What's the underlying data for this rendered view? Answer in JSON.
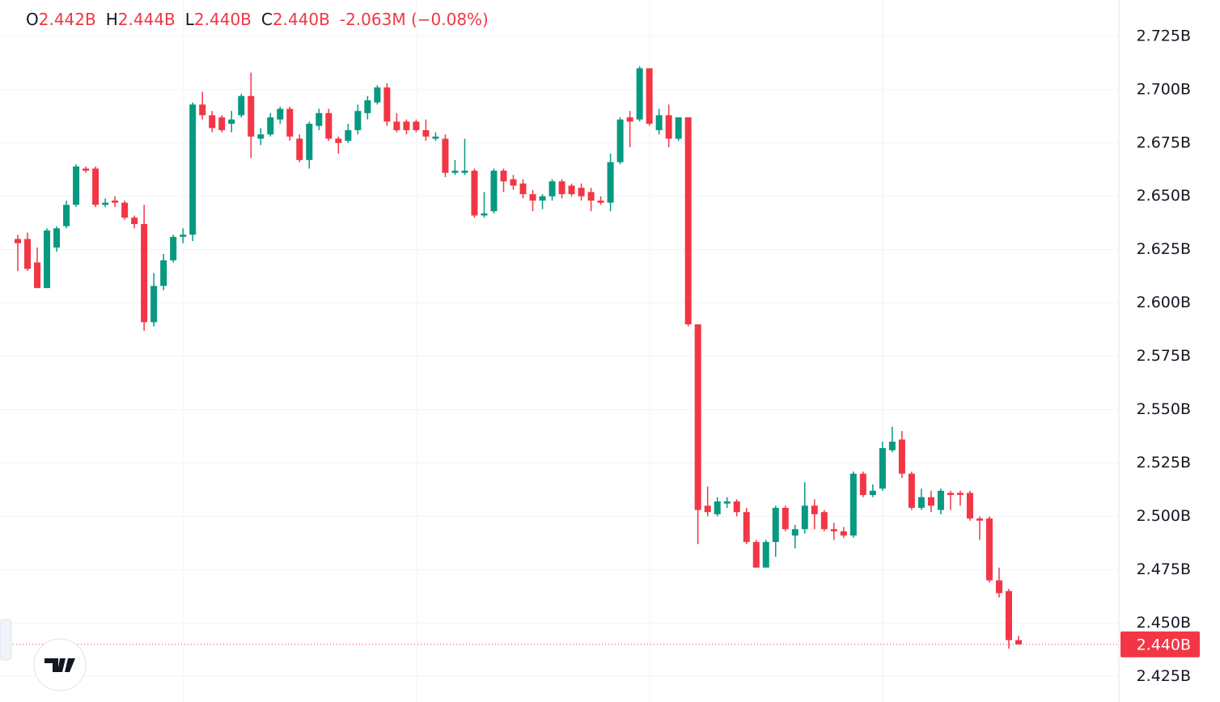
{
  "chart_data": {
    "type": "candlestick",
    "ohlc_legend": [
      {
        "label": "O",
        "value": "2.442B"
      },
      {
        "label": "H",
        "value": "2.444B"
      },
      {
        "label": "L",
        "value": "2.440B"
      },
      {
        "label": "C",
        "value": "2.440B"
      }
    ],
    "change": "-2.063M (−0.08%)",
    "up_color": "#089981",
    "down_color": "#f23645",
    "ylim": [
      2.413,
      2.742
    ],
    "yticks": [
      {
        "value": 2.425,
        "label": "2.425B"
      },
      {
        "value": 2.45,
        "label": "2.450B"
      },
      {
        "value": 2.475,
        "label": "2.475B"
      },
      {
        "value": 2.5,
        "label": "2.500B"
      },
      {
        "value": 2.525,
        "label": "2.525B"
      },
      {
        "value": 2.55,
        "label": "2.550B"
      },
      {
        "value": 2.575,
        "label": "2.575B"
      },
      {
        "value": 2.6,
        "label": "2.600B"
      },
      {
        "value": 2.625,
        "label": "2.625B"
      },
      {
        "value": 2.65,
        "label": "2.650B"
      },
      {
        "value": 2.675,
        "label": "2.675B"
      },
      {
        "value": 2.7,
        "label": "2.700B"
      },
      {
        "value": 2.725,
        "label": "2.725B"
      }
    ],
    "last_price": {
      "value": 2.44,
      "label": "2.440B"
    },
    "grid": true,
    "open": [
      2.63,
      2.63,
      2.619,
      2.607,
      2.626,
      2.636,
      2.646,
      2.663,
      2.663,
      2.646,
      2.648,
      2.647,
      2.64,
      2.637,
      2.591,
      2.608,
      2.62,
      2.631,
      2.632,
      2.693,
      2.688,
      2.687,
      2.684,
      2.688,
      2.697,
      2.677,
      2.679,
      2.686,
      2.691,
      2.677,
      2.667,
      2.683,
      2.689,
      2.677,
      2.676,
      2.681,
      2.689,
      2.694,
      2.701,
      2.685,
      2.685,
      2.685,
      2.681,
      2.677,
      2.677,
      2.661,
      2.661,
      2.662,
      2.641,
      2.643,
      2.662,
      2.658,
      2.656,
      2.651,
      2.648,
      2.65,
      2.657,
      2.655,
      2.654,
      2.652,
      2.648,
      2.647,
      2.666,
      2.687,
      2.686,
      2.71,
      2.681,
      2.688,
      2.677,
      2.687,
      2.59,
      2.505,
      2.501,
      2.506,
      2.507,
      2.502,
      2.488,
      2.476,
      2.488,
      2.504,
      2.491,
      2.494,
      2.505,
      2.502,
      2.494,
      2.493,
      2.491,
      2.52,
      2.51,
      2.513,
      2.531,
      2.536,
      2.52,
      2.504,
      2.509,
      2.503,
      2.511,
      2.511,
      2.511,
      2.499,
      2.499,
      2.47,
      2.465,
      2.442
    ],
    "high": [
      2.632,
      2.633,
      2.626,
      2.635,
      2.636,
      2.648,
      2.665,
      2.664,
      2.664,
      2.649,
      2.65,
      2.648,
      2.641,
      2.646,
      2.614,
      2.623,
      2.632,
      2.635,
      2.694,
      2.699,
      2.69,
      2.688,
      2.69,
      2.698,
      2.708,
      2.682,
      2.689,
      2.692,
      2.692,
      2.679,
      2.685,
      2.691,
      2.691,
      2.678,
      2.684,
      2.693,
      2.697,
      2.702,
      2.703,
      2.689,
      2.686,
      2.686,
      2.686,
      2.68,
      2.679,
      2.667,
      2.677,
      2.663,
      2.652,
      2.663,
      2.663,
      2.66,
      2.658,
      2.653,
      2.651,
      2.658,
      2.658,
      2.656,
      2.656,
      2.654,
      2.65,
      2.67,
      2.687,
      2.69,
      2.711,
      2.71,
      2.691,
      2.693,
      2.687,
      2.687,
      2.59,
      2.514,
      2.509,
      2.509,
      2.508,
      2.504,
      2.489,
      2.489,
      2.505,
      2.505,
      2.496,
      2.516,
      2.508,
      2.503,
      2.497,
      2.495,
      2.521,
      2.521,
      2.515,
      2.535,
      2.542,
      2.54,
      2.521,
      2.513,
      2.512,
      2.513,
      2.512,
      2.512,
      2.512,
      2.5,
      2.5,
      2.476,
      2.466,
      2.444
    ],
    "low": [
      2.615,
      2.615,
      2.607,
      2.607,
      2.624,
      2.635,
      2.645,
      2.661,
      2.645,
      2.645,
      2.645,
      2.639,
      2.635,
      2.587,
      2.589,
      2.606,
      2.619,
      2.628,
      2.629,
      2.686,
      2.68,
      2.68,
      2.68,
      2.687,
      2.668,
      2.674,
      2.678,
      2.684,
      2.676,
      2.666,
      2.663,
      2.681,
      2.676,
      2.67,
      2.675,
      2.679,
      2.686,
      2.693,
      2.683,
      2.68,
      2.679,
      2.68,
      2.676,
      2.676,
      2.659,
      2.66,
      2.66,
      2.64,
      2.64,
      2.642,
      2.652,
      2.653,
      2.649,
      2.643,
      2.644,
      2.648,
      2.649,
      2.65,
      2.648,
      2.643,
      2.646,
      2.643,
      2.665,
      2.673,
      2.685,
      2.683,
      2.679,
      2.673,
      2.676,
      2.589,
      2.487,
      2.5,
      2.5,
      2.504,
      2.5,
      2.487,
      2.476,
      2.476,
      2.481,
      2.493,
      2.485,
      2.492,
      2.494,
      2.493,
      2.489,
      2.49,
      2.49,
      2.509,
      2.509,
      2.512,
      2.53,
      2.518,
      2.503,
      2.503,
      2.502,
      2.501,
      2.503,
      2.505,
      2.498,
      2.489,
      2.469,
      2.462,
      2.438,
      2.44
    ],
    "close": [
      2.628,
      2.616,
      2.607,
      2.634,
      2.635,
      2.646,
      2.664,
      2.662,
      2.646,
      2.647,
      2.647,
      2.64,
      2.637,
      2.591,
      2.608,
      2.62,
      2.631,
      2.632,
      2.693,
      2.688,
      2.682,
      2.681,
      2.686,
      2.697,
      2.678,
      2.679,
      2.687,
      2.691,
      2.678,
      2.667,
      2.684,
      2.689,
      2.677,
      2.675,
      2.681,
      2.69,
      2.695,
      2.701,
      2.685,
      2.681,
      2.681,
      2.681,
      2.678,
      2.678,
      2.661,
      2.662,
      2.662,
      2.641,
      2.642,
      2.662,
      2.657,
      2.655,
      2.651,
      2.648,
      2.65,
      2.657,
      2.651,
      2.651,
      2.65,
      2.648,
      2.647,
      2.666,
      2.686,
      2.685,
      2.71,
      2.684,
      2.688,
      2.677,
      2.687,
      2.59,
      2.503,
      2.502,
      2.507,
      2.507,
      2.502,
      2.488,
      2.476,
      2.488,
      2.504,
      2.494,
      2.494,
      2.505,
      2.501,
      2.494,
      2.493,
      2.491,
      2.52,
      2.51,
      2.512,
      2.532,
      2.535,
      2.52,
      2.504,
      2.509,
      2.505,
      2.512,
      2.51,
      2.51,
      2.499,
      2.498,
      2.47,
      2.464,
      2.442,
      2.44
    ]
  }
}
